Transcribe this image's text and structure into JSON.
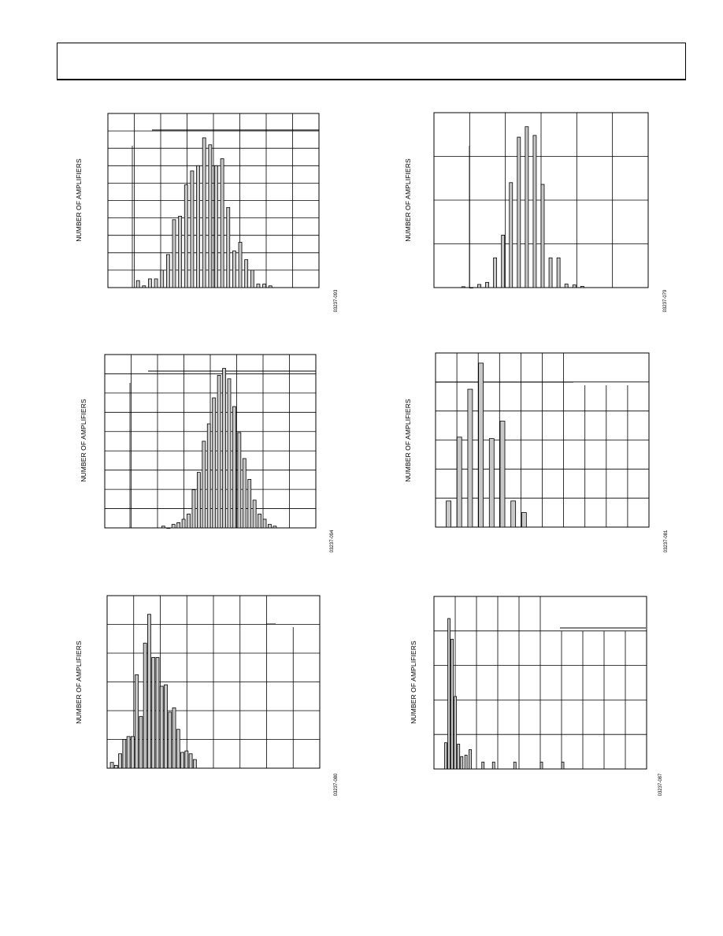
{
  "page": {
    "header_text": ""
  },
  "colors": {
    "bar_fill": "#c8c8c8",
    "stroke": "#000000"
  },
  "charts": [
    {
      "id": "chart-1",
      "ylabel": "NUMBER OF AMPLIFIERS",
      "figure_id": "03237-093",
      "chart_data": {
        "type": "bar",
        "cols": 8,
        "rows": 10,
        "ymax": 100,
        "values": [
          4,
          1,
          5,
          5,
          10,
          19,
          39,
          41,
          59,
          67,
          70,
          86,
          82,
          70,
          74,
          46,
          21,
          26,
          16,
          10,
          2,
          2,
          1
        ],
        "xstart": 0.135,
        "xstep": 0.0285
      }
    },
    {
      "id": "chart-2",
      "ylabel": "NUMBER OF AMPLIFIERS",
      "figure_id": "03237-079",
      "chart_data": {
        "type": "bar",
        "cols": 6,
        "rows": 4,
        "ymax": 100,
        "values": [
          0.5,
          0,
          1.8,
          3,
          17,
          30,
          60,
          86,
          92,
          87,
          59,
          17,
          17,
          2,
          1.5,
          0.7
        ],
        "xstart": 0.13,
        "xstep": 0.037
      }
    },
    {
      "id": "chart-3",
      "ylabel": "NUMBER OF AMPLIFIERS",
      "figure_id": "03237-094",
      "chart_data": {
        "type": "bar",
        "cols": 8,
        "rows": 9,
        "ymax": 100,
        "values": [
          1,
          0,
          2,
          3,
          5,
          8,
          22,
          32,
          50,
          60,
          75,
          88,
          92,
          86,
          70,
          55,
          40,
          28,
          16,
          8,
          5,
          2,
          1
        ],
        "xstart": 0.27,
        "xstep": 0.024
      }
    },
    {
      "id": "chart-4",
      "ylabel": "NUMBER OF AMPLIFIERS",
      "figure_id": "03237-081",
      "chart_data": {
        "type": "bar",
        "cols": 10,
        "rows": 6,
        "ymax": 120,
        "values": [
          18,
          62,
          95,
          113,
          61,
          73,
          18,
          10
        ],
        "xstart": 0.05,
        "xstep": 0.0505
      }
    },
    {
      "id": "chart-5",
      "ylabel": "NUMBER OF AMPLIFIERS",
      "figure_id": "03237-080",
      "chart_data": {
        "type": "bar",
        "cols": 8,
        "rows": 6,
        "ymax": 120,
        "values": [
          4,
          2,
          10,
          20,
          22,
          22,
          65,
          36,
          87,
          107,
          77,
          77,
          57,
          58,
          39,
          42,
          27,
          11,
          12,
          10,
          6
        ],
        "xstart": 0.015,
        "xstep": 0.0195
      }
    },
    {
      "id": "chart-6",
      "ylabel": "NUMBER OF AMPLIFIERS",
      "figure_id": "03237-087",
      "chart_data": {
        "type": "bar",
        "cols": 10,
        "rows": 5,
        "ymax": 250,
        "values": [
          38,
          218,
          188,
          105,
          36,
          18,
          20,
          28,
          10,
          10,
          10,
          10,
          10
        ],
        "xpos": [
          0.05,
          0.065,
          0.08,
          0.095,
          0.11,
          0.125,
          0.145,
          0.165,
          0.225,
          0.275,
          0.375,
          0.5,
          0.6
        ]
      }
    }
  ]
}
